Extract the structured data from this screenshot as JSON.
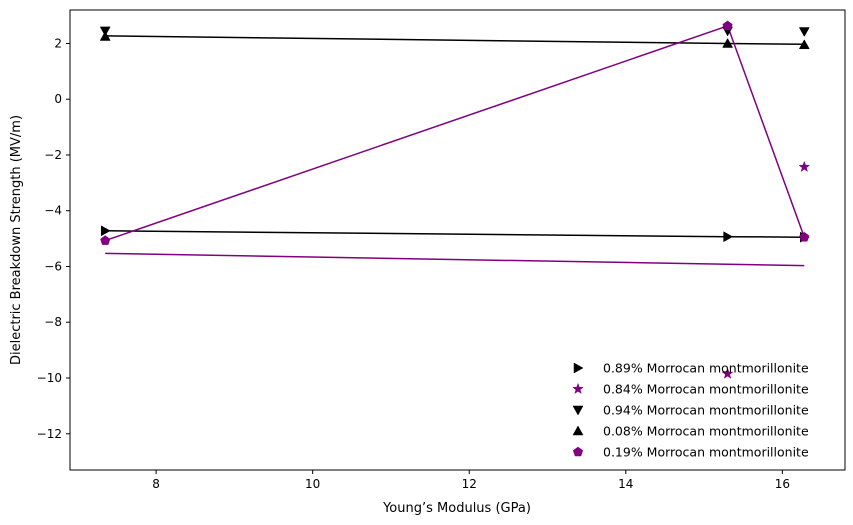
{
  "chart_data": {
    "type": "scatter",
    "title": "",
    "xlabel": "Young’s Modulus (GPa)",
    "ylabel": "Dielectric Breakdown Strength (MV/m)",
    "xlim": [
      6.9,
      16.8
    ],
    "ylim": [
      -13.3,
      3.2
    ],
    "xticks": [
      8,
      10,
      12,
      14,
      16
    ],
    "yticks": [
      2,
      0,
      -2,
      -4,
      -6,
      -8,
      -10,
      -12
    ],
    "xtick_labels": [
      "8",
      "10",
      "12",
      "14",
      "16"
    ],
    "ytick_labels": [
      "2",
      "0",
      "−2",
      "−4",
      "−6",
      "−8",
      "−10",
      "−12"
    ],
    "grid": false,
    "legend_position": "lower-right",
    "series": [
      {
        "name": "0.89% Morrocan montmorillonite",
        "marker": "triangle-right",
        "color": "#000000",
        "points": [
          [
            7.35,
            -4.72
          ],
          [
            15.3,
            -4.93
          ],
          [
            16.28,
            -4.95
          ]
        ],
        "line": [
          [
            7.35,
            -4.72
          ],
          [
            15.3,
            -4.93
          ],
          [
            16.28,
            -4.95
          ]
        ]
      },
      {
        "name": "0.84% Morrocan montmorillonite",
        "marker": "star",
        "color": "#800080",
        "points": [
          [
            15.3,
            -9.85
          ],
          [
            16.28,
            -2.43
          ]
        ],
        "line": [
          [
            7.35,
            -5.53
          ],
          [
            16.28,
            -5.97
          ]
        ]
      },
      {
        "name": "0.94% Morrocan montmorillonite",
        "marker": "triangle-down",
        "color": "#000000",
        "points": [
          [
            7.35,
            2.45
          ],
          [
            15.3,
            2.45
          ],
          [
            16.28,
            2.43
          ]
        ],
        "line": []
      },
      {
        "name": "0.08% Morrocan montmorillonite",
        "marker": "triangle-up",
        "color": "#000000",
        "points": [
          [
            7.35,
            2.25
          ],
          [
            15.3,
            2.0
          ],
          [
            16.28,
            1.95
          ]
        ],
        "line": [
          [
            7.35,
            2.27
          ],
          [
            15.3,
            2.0
          ],
          [
            16.28,
            1.97
          ]
        ]
      },
      {
        "name": "0.19% Morrocan montmorillonite",
        "marker": "pentagon",
        "color": "#800080",
        "points": [
          [
            7.35,
            -5.07
          ],
          [
            15.3,
            2.63
          ],
          [
            16.28,
            -4.95
          ]
        ],
        "line": [
          [
            7.35,
            -5.07
          ],
          [
            15.3,
            2.63
          ],
          [
            16.28,
            -4.95
          ]
        ]
      }
    ]
  }
}
